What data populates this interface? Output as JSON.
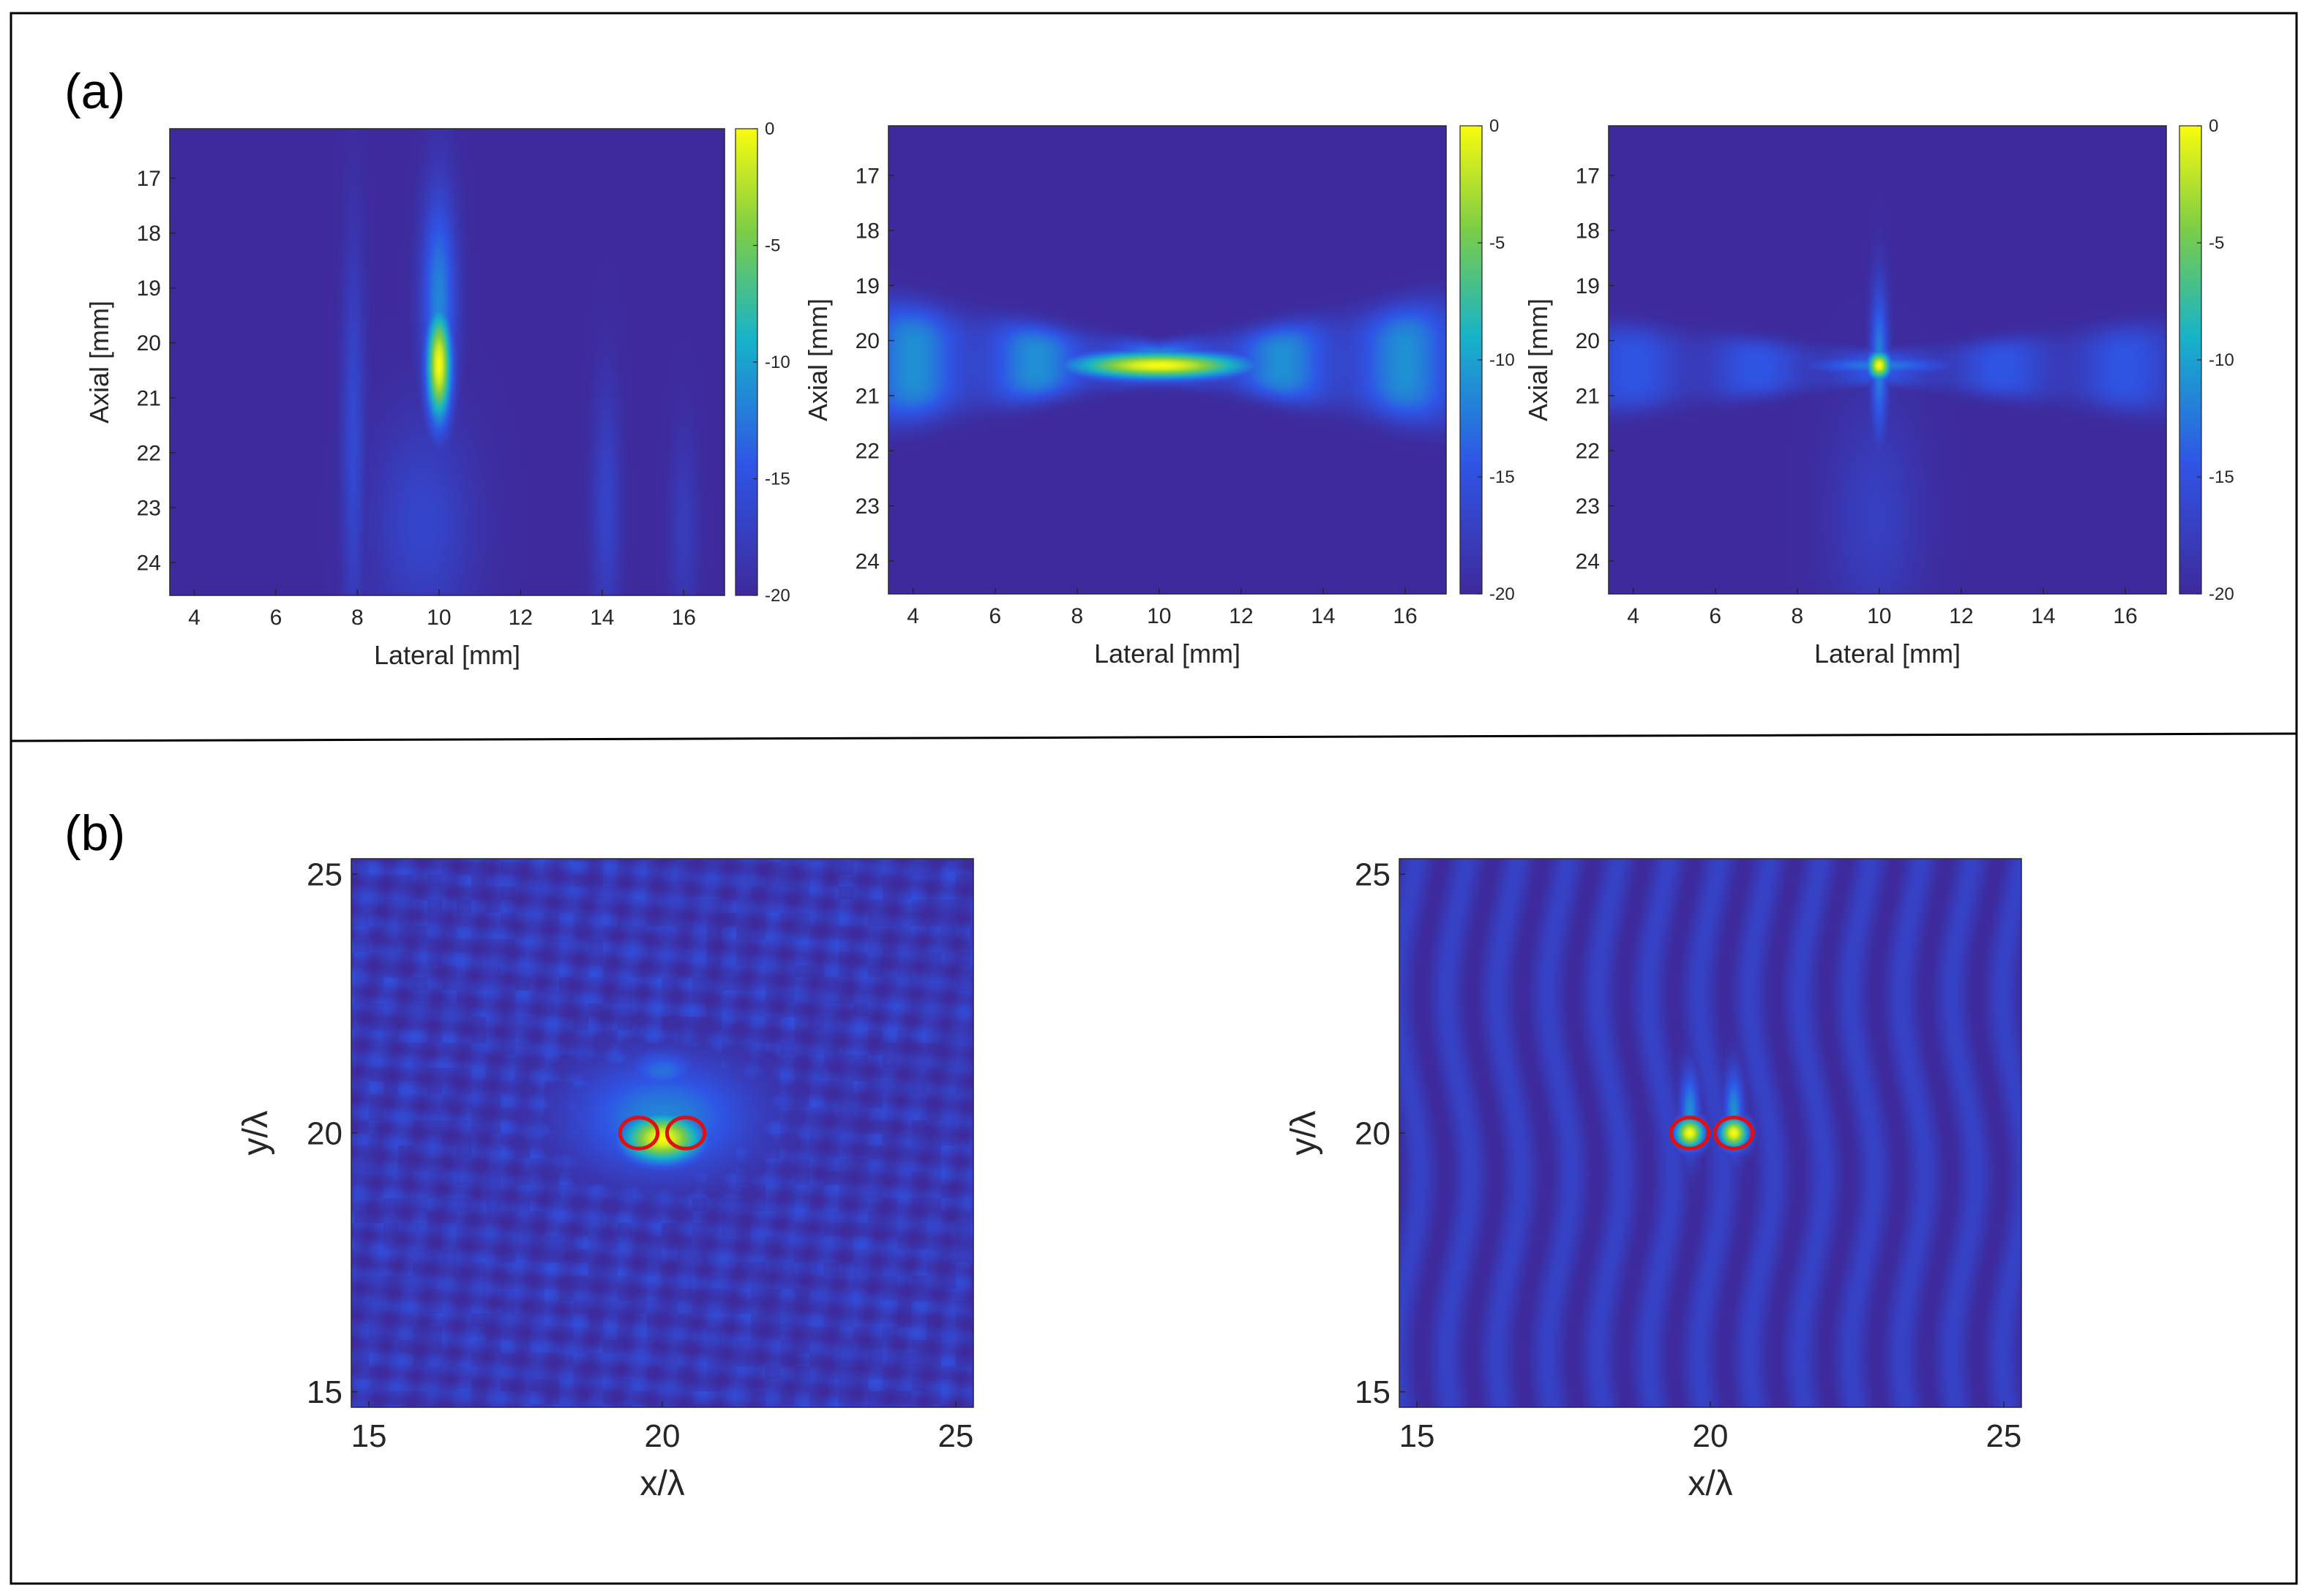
{
  "figure": {
    "panel_a_label": "(a)",
    "panel_b_label": "(b)"
  },
  "colors": {
    "heat_min": "#3e2a9c",
    "heat_blue": "#2f55e6",
    "heat_cyan": "#17b3c9",
    "heat_green": "#7ccd46",
    "heat_yellow": "#f9fb0e",
    "marker_ring": "#e01010",
    "frame": "#000000"
  },
  "chart_data": [
    {
      "id": "a1",
      "type": "heatmap",
      "xlabel": "Lateral [mm]",
      "ylabel": "Axial [mm]",
      "xlim": [
        3.4,
        17.0
      ],
      "ylim": [
        16.1,
        24.6
      ],
      "y_reversed": true,
      "xticks": [
        4,
        6,
        8,
        10,
        12,
        14,
        16
      ],
      "yticks": [
        17,
        18,
        19,
        20,
        21,
        22,
        23,
        24
      ],
      "colorbar": {
        "ticks": [
          0,
          -5,
          -10,
          -15,
          -20
        ],
        "range": [
          -20,
          0
        ]
      },
      "features": [
        {
          "kind": "focal-spot",
          "x": 10.0,
          "y": 20.4,
          "sx": 0.22,
          "sy": 0.75,
          "level": 1.0
        },
        {
          "kind": "streak",
          "x": 10.0,
          "y": 19.2,
          "sx": 0.3,
          "sy": 1.4,
          "level": 0.42
        },
        {
          "kind": "streak",
          "x": 7.9,
          "y": 21.8,
          "sx": 0.2,
          "sy": 2.6,
          "level": 0.2
        },
        {
          "kind": "streak",
          "x": 9.6,
          "y": 23.3,
          "sx": 0.9,
          "sy": 1.4,
          "level": 0.18
        },
        {
          "kind": "streak",
          "x": 14.1,
          "y": 23.0,
          "sx": 0.25,
          "sy": 1.6,
          "level": 0.17
        },
        {
          "kind": "streak",
          "x": 16.0,
          "y": 23.4,
          "sx": 0.25,
          "sy": 1.3,
          "level": 0.12
        }
      ]
    },
    {
      "id": "a2",
      "type": "heatmap",
      "xlabel": "Lateral [mm]",
      "ylabel": "Axial [mm]",
      "xlim": [
        3.4,
        17.0
      ],
      "ylim": [
        16.1,
        24.6
      ],
      "y_reversed": true,
      "xticks": [
        4,
        6,
        8,
        10,
        12,
        14,
        16
      ],
      "yticks": [
        17,
        18,
        19,
        20,
        21,
        22,
        23,
        24
      ],
      "colorbar": {
        "ticks": [
          0,
          -5,
          -10,
          -15,
          -20
        ],
        "range": [
          -20,
          0
        ]
      },
      "features": [
        {
          "kind": "focal-spot",
          "x": 10.0,
          "y": 20.45,
          "sx": 1.6,
          "sy": 0.18,
          "level": 1.0
        },
        {
          "kind": "x-band",
          "x": 10.0,
          "y": 20.4,
          "half_width_center": 0.35,
          "spread": 0.12,
          "level": 0.45
        }
      ]
    },
    {
      "id": "a3",
      "type": "heatmap",
      "xlabel": "Lateral [mm]",
      "ylabel": "Axial [mm]",
      "xlim": [
        3.4,
        17.0
      ],
      "ylim": [
        16.1,
        24.6
      ],
      "y_reversed": true,
      "xticks": [
        4,
        6,
        8,
        10,
        12,
        14,
        16
      ],
      "yticks": [
        17,
        18,
        19,
        20,
        21,
        22,
        23,
        24
      ],
      "colorbar": {
        "ticks": [
          0,
          -5,
          -10,
          -15,
          -20
        ],
        "range": [
          -20,
          0
        ]
      },
      "features": [
        {
          "kind": "focal-spot",
          "x": 10.0,
          "y": 20.45,
          "sx": 0.2,
          "sy": 0.18,
          "level": 1.0
        },
        {
          "kind": "streak",
          "x": 10.0,
          "y": 20.4,
          "sx": 0.15,
          "sy": 1.0,
          "level": 0.42
        },
        {
          "kind": "streak",
          "x": 10.0,
          "y": 20.45,
          "sx": 1.2,
          "sy": 0.12,
          "level": 0.4
        },
        {
          "kind": "x-band",
          "x": 10.0,
          "y": 20.5,
          "half_width_center": 0.3,
          "spread": 0.08,
          "level": 0.28
        },
        {
          "kind": "streak",
          "x": 9.9,
          "y": 23.2,
          "sx": 0.8,
          "sy": 1.5,
          "level": 0.14
        }
      ]
    },
    {
      "id": "b1",
      "type": "heatmap",
      "xlabel": "x/λ",
      "ylabel": "y/λ",
      "xlim": [
        14.7,
        25.3
      ],
      "ylim": [
        14.7,
        25.3
      ],
      "y_reversed": false,
      "xticks": [
        15,
        20,
        25
      ],
      "yticks": [
        15,
        20,
        25
      ],
      "markers": [
        {
          "x": 19.6,
          "y": 20.0,
          "rx": 0.32,
          "ry": 0.3
        },
        {
          "x": 20.4,
          "y": 20.0,
          "rx": 0.32,
          "ry": 0.3
        }
      ],
      "features": [
        {
          "kind": "focal-spot",
          "x": 20.0,
          "y": 19.9,
          "sx": 0.5,
          "sy": 0.35,
          "level": 1.0
        },
        {
          "kind": "streak",
          "x": 20.0,
          "y": 20.3,
          "sx": 1.1,
          "sy": 0.8,
          "level": 0.42
        },
        {
          "kind": "streak",
          "x": 20.0,
          "y": 21.2,
          "sx": 0.45,
          "sy": 0.3,
          "level": 0.36
        },
        {
          "kind": "speckle",
          "level": 0.24
        }
      ]
    },
    {
      "id": "b2",
      "type": "heatmap",
      "xlabel": "x/λ",
      "ylabel": "y/λ",
      "xlim": [
        14.7,
        25.3
      ],
      "ylim": [
        14.7,
        25.3
      ],
      "y_reversed": false,
      "xticks": [
        15,
        20,
        25
      ],
      "yticks": [
        15,
        20,
        25
      ],
      "markers": [
        {
          "x": 19.65,
          "y": 20.0,
          "rx": 0.32,
          "ry": 0.3
        },
        {
          "x": 20.4,
          "y": 20.0,
          "rx": 0.32,
          "ry": 0.3
        }
      ],
      "features": [
        {
          "kind": "focal-spot",
          "x": 19.65,
          "y": 20.0,
          "sx": 0.18,
          "sy": 0.22,
          "level": 1.0
        },
        {
          "kind": "focal-spot",
          "x": 20.4,
          "y": 20.0,
          "sx": 0.18,
          "sy": 0.22,
          "level": 1.0
        },
        {
          "kind": "streak",
          "x": 19.65,
          "y": 20.4,
          "sx": 0.12,
          "sy": 0.6,
          "level": 0.45
        },
        {
          "kind": "streak",
          "x": 20.4,
          "y": 20.4,
          "sx": 0.12,
          "sy": 0.6,
          "level": 0.45
        },
        {
          "kind": "vertical-streaks",
          "level": 0.16
        }
      ]
    }
  ]
}
